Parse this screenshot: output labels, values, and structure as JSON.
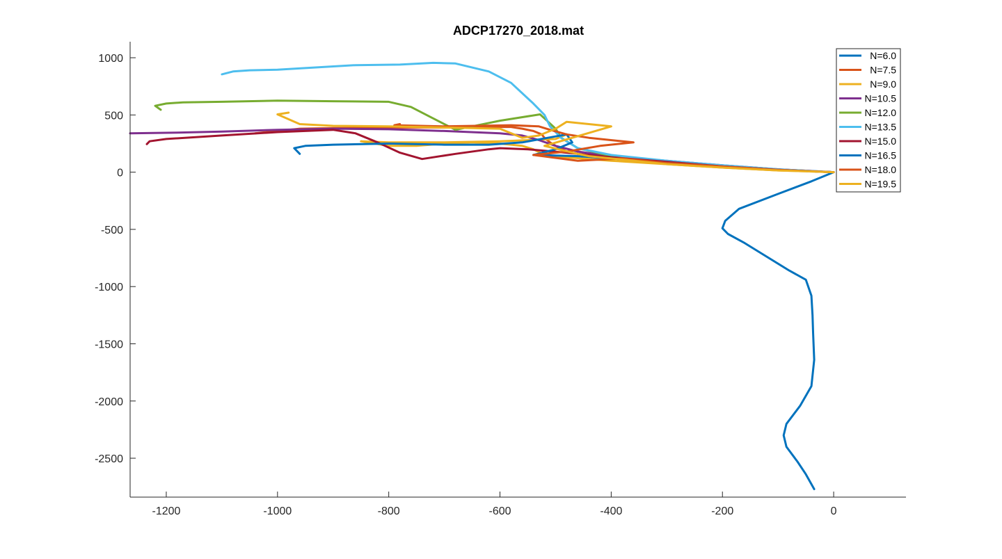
{
  "chart_data": {
    "type": "line",
    "title": "ADCP17270_2018.mat",
    "xlabel": "",
    "ylabel": "",
    "xlim": [
      -1265,
      130
    ],
    "ylim": [
      -2840,
      1140
    ],
    "xticks": [
      -1200,
      -1000,
      -800,
      -600,
      -400,
      -200,
      0
    ],
    "yticks": [
      1000,
      500,
      0,
      -500,
      -1000,
      -1500,
      -2000,
      -2500
    ],
    "xtick_labels": [
      "-1200",
      "-1000",
      "-800",
      "-600",
      "-400",
      "-200",
      "0"
    ],
    "ytick_labels": [
      "1000",
      "500",
      "0",
      "-500",
      "-1000",
      "-1500",
      "-2000",
      "-2500"
    ],
    "grid": false,
    "legend_position": "top-right",
    "series": [
      {
        "name": "N=6.0",
        "color": "#0072BD",
        "points": [
          [
            0,
            0
          ],
          [
            -40,
            -80
          ],
          [
            -100,
            -190
          ],
          [
            -170,
            -320
          ],
          [
            -195,
            -425
          ],
          [
            -200,
            -490
          ],
          [
            -190,
            -540
          ],
          [
            -160,
            -620
          ],
          [
            -120,
            -740
          ],
          [
            -80,
            -860
          ],
          [
            -50,
            -940
          ],
          [
            -40,
            -1080
          ],
          [
            -38,
            -1250
          ],
          [
            -37,
            -1400
          ],
          [
            -35,
            -1640
          ],
          [
            -40,
            -1870
          ],
          [
            -60,
            -2040
          ],
          [
            -85,
            -2200
          ],
          [
            -90,
            -2300
          ],
          [
            -85,
            -2400
          ],
          [
            -65,
            -2530
          ],
          [
            -50,
            -2640
          ],
          [
            -35,
            -2770
          ]
        ]
      },
      {
        "name": "N=7.5",
        "color": "#D95319",
        "points": [
          [
            0,
            0
          ],
          [
            -100,
            20
          ],
          [
            -200,
            50
          ],
          [
            -300,
            80
          ],
          [
            -380,
            110
          ],
          [
            -440,
            140
          ],
          [
            -480,
            180
          ],
          [
            -500,
            230
          ],
          [
            -510,
            260
          ],
          [
            -520,
            300
          ],
          [
            -525,
            330
          ],
          [
            -540,
            360
          ],
          [
            -560,
            380
          ],
          [
            -580,
            395
          ],
          [
            -620,
            395
          ],
          [
            -700,
            390
          ],
          [
            -800,
            390
          ],
          [
            -900,
            385
          ],
          [
            -960,
            380
          ],
          [
            -1040,
            340
          ]
        ]
      },
      {
        "name": "N=9.0",
        "color": "#EDB120",
        "points": [
          [
            0,
            0
          ],
          [
            -100,
            15
          ],
          [
            -200,
            40
          ],
          [
            -300,
            70
          ],
          [
            -400,
            100
          ],
          [
            -480,
            130
          ],
          [
            -520,
            150
          ],
          [
            -540,
            200
          ],
          [
            -560,
            230
          ],
          [
            -600,
            250
          ],
          [
            -650,
            260
          ],
          [
            -700,
            250
          ],
          [
            -750,
            230
          ],
          [
            -800,
            230
          ],
          [
            -850,
            270
          ],
          [
            -800,
            260
          ],
          [
            -700,
            260
          ],
          [
            -600,
            270
          ],
          [
            -500,
            290
          ],
          [
            -480,
            330
          ]
        ]
      },
      {
        "name": "N=10.5",
        "color": "#7E2F8E",
        "points": [
          [
            0,
            0
          ],
          [
            -100,
            25
          ],
          [
            -200,
            60
          ],
          [
            -300,
            100
          ],
          [
            -400,
            140
          ],
          [
            -460,
            180
          ],
          [
            -500,
            230
          ],
          [
            -530,
            280
          ],
          [
            -560,
            320
          ],
          [
            -600,
            340
          ],
          [
            -700,
            360
          ],
          [
            -800,
            375
          ],
          [
            -900,
            380
          ],
          [
            -1000,
            370
          ],
          [
            -1100,
            355
          ],
          [
            -1180,
            345
          ],
          [
            -1265,
            340
          ]
        ]
      },
      {
        "name": "N=12.0",
        "color": "#77AC30",
        "points": [
          [
            0,
            0
          ],
          [
            -100,
            20
          ],
          [
            -200,
            50
          ],
          [
            -300,
            90
          ],
          [
            -400,
            140
          ],
          [
            -460,
            210
          ],
          [
            -490,
            300
          ],
          [
            -500,
            380
          ],
          [
            -520,
            470
          ],
          [
            -528,
            505
          ],
          [
            -600,
            450
          ],
          [
            -680,
            370
          ],
          [
            -720,
            470
          ],
          [
            -760,
            570
          ],
          [
            -800,
            615
          ],
          [
            -900,
            620
          ],
          [
            -1000,
            625
          ],
          [
            -1100,
            615
          ],
          [
            -1170,
            610
          ],
          [
            -1200,
            600
          ],
          [
            -1220,
            580
          ],
          [
            -1210,
            545
          ]
        ]
      },
      {
        "name": "N=13.5",
        "color": "#4DBEEE",
        "points": [
          [
            0,
            0
          ],
          [
            -100,
            25
          ],
          [
            -200,
            60
          ],
          [
            -300,
            100
          ],
          [
            -400,
            150
          ],
          [
            -460,
            210
          ],
          [
            -490,
            300
          ],
          [
            -510,
            400
          ],
          [
            -520,
            500
          ],
          [
            -540,
            600
          ],
          [
            -580,
            780
          ],
          [
            -620,
            880
          ],
          [
            -680,
            950
          ],
          [
            -720,
            955
          ],
          [
            -780,
            940
          ],
          [
            -860,
            935
          ],
          [
            -950,
            910
          ],
          [
            -1000,
            895
          ],
          [
            -1050,
            890
          ],
          [
            -1080,
            880
          ],
          [
            -1100,
            855
          ]
        ]
      },
      {
        "name": "N=15.0",
        "color": "#A2142F",
        "points": [
          [
            0,
            0
          ],
          [
            -100,
            20
          ],
          [
            -200,
            50
          ],
          [
            -300,
            90
          ],
          [
            -400,
            130
          ],
          [
            -480,
            170
          ],
          [
            -550,
            200
          ],
          [
            -600,
            210
          ],
          [
            -620,
            200
          ],
          [
            -680,
            160
          ],
          [
            -740,
            115
          ],
          [
            -780,
            170
          ],
          [
            -820,
            260
          ],
          [
            -860,
            340
          ],
          [
            -900,
            370
          ],
          [
            -1000,
            350
          ],
          [
            -1100,
            320
          ],
          [
            -1200,
            290
          ],
          [
            -1230,
            270
          ],
          [
            -1235,
            245
          ]
        ]
      },
      {
        "name": "N=16.5",
        "color": "#0072BD",
        "points": [
          [
            0,
            0
          ],
          [
            -100,
            20
          ],
          [
            -200,
            50
          ],
          [
            -300,
            80
          ],
          [
            -400,
            120
          ],
          [
            -460,
            140
          ],
          [
            -540,
            150
          ],
          [
            -500,
            200
          ],
          [
            -470,
            260
          ],
          [
            -480,
            330
          ],
          [
            -560,
            260
          ],
          [
            -620,
            240
          ],
          [
            -700,
            240
          ],
          [
            -800,
            250
          ],
          [
            -900,
            240
          ],
          [
            -950,
            230
          ],
          [
            -970,
            210
          ],
          [
            -960,
            160
          ]
        ]
      },
      {
        "name": "N=18.0",
        "color": "#D95319",
        "points": [
          [
            0,
            0
          ],
          [
            -100,
            20
          ],
          [
            -200,
            50
          ],
          [
            -300,
            80
          ],
          [
            -380,
            120
          ],
          [
            -460,
            100
          ],
          [
            -540,
            150
          ],
          [
            -480,
            180
          ],
          [
            -420,
            230
          ],
          [
            -360,
            260
          ],
          [
            -440,
            300
          ],
          [
            -480,
            330
          ],
          [
            -510,
            370
          ],
          [
            -530,
            400
          ],
          [
            -580,
            410
          ],
          [
            -700,
            400
          ],
          [
            -790,
            410
          ],
          [
            -780,
            420
          ]
        ]
      },
      {
        "name": "N=19.5",
        "color": "#EDB120",
        "points": [
          [
            0,
            0
          ],
          [
            -100,
            15
          ],
          [
            -200,
            40
          ],
          [
            -300,
            70
          ],
          [
            -380,
            110
          ],
          [
            -440,
            140
          ],
          [
            -470,
            170
          ],
          [
            -520,
            230
          ],
          [
            -400,
            400
          ],
          [
            -480,
            440
          ],
          [
            -500,
            380
          ],
          [
            -530,
            320
          ],
          [
            -560,
            300
          ],
          [
            -600,
            380
          ],
          [
            -700,
            390
          ],
          [
            -800,
            400
          ],
          [
            -900,
            405
          ],
          [
            -960,
            420
          ],
          [
            -1000,
            505
          ],
          [
            -980,
            520
          ]
        ]
      }
    ]
  }
}
